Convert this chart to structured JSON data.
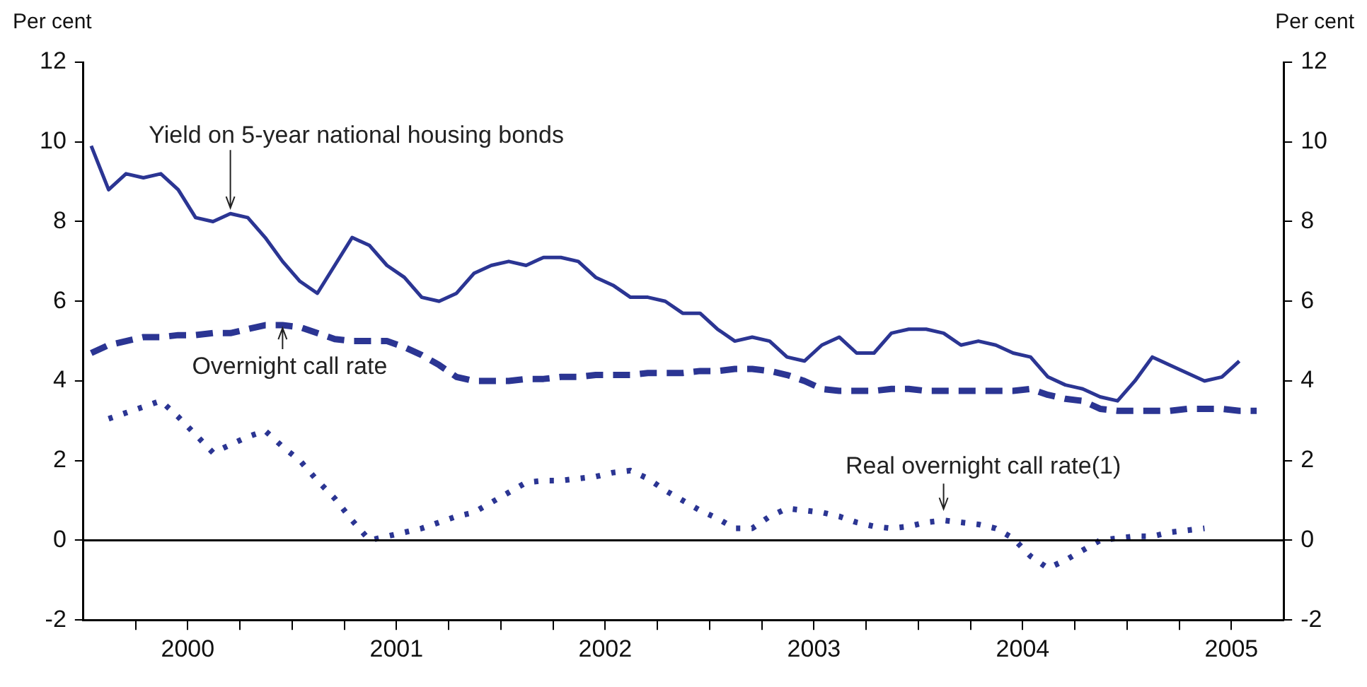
{
  "chart_data": {
    "type": "line",
    "ylabel": "Per cent",
    "y2label": "Per cent",
    "x": [
      "1999-07-15",
      "1999-08-15",
      "1999-09-15",
      "1999-10-15",
      "1999-11-15",
      "1999-12-15",
      "2000-01-15",
      "2000-02-15",
      "2000-03-15",
      "2000-04-15",
      "2000-05-15",
      "2000-06-15",
      "2000-07-15",
      "2000-08-15",
      "2000-09-15",
      "2000-10-15",
      "2000-11-15",
      "2000-12-15",
      "2001-01-15",
      "2001-02-15",
      "2001-03-15",
      "2001-04-15",
      "2001-05-15",
      "2001-06-15",
      "2001-07-15",
      "2001-08-15",
      "2001-09-15",
      "2001-10-15",
      "2001-11-15",
      "2001-12-15",
      "2002-01-15",
      "2002-02-15",
      "2002-03-15",
      "2002-04-15",
      "2002-05-15",
      "2002-06-15",
      "2002-07-15",
      "2002-08-15",
      "2002-09-15",
      "2002-10-15",
      "2002-11-15",
      "2002-12-15",
      "2003-01-15",
      "2003-02-15",
      "2003-03-15",
      "2003-04-15",
      "2003-05-15",
      "2003-06-15",
      "2003-07-15",
      "2003-08-15",
      "2003-09-15",
      "2003-10-15",
      "2003-11-15",
      "2003-12-15",
      "2004-01-15",
      "2004-02-15",
      "2004-03-15",
      "2004-04-15",
      "2004-05-15",
      "2004-06-15",
      "2004-07-15",
      "2004-08-15",
      "2004-09-15",
      "2004-10-15",
      "2004-11-15",
      "2004-12-15",
      "2005-01-15",
      "2005-02-15"
    ],
    "series": [
      {
        "color": "#2b3593",
        "line_style": "solid",
        "values": [
          9.9,
          8.8,
          9.2,
          9.1,
          9.2,
          8.8,
          8.1,
          8.0,
          8.2,
          8.1,
          7.6,
          7.0,
          6.5,
          6.2,
          6.9,
          7.6,
          7.4,
          6.9,
          6.6,
          6.1,
          6.0,
          6.2,
          6.7,
          6.9,
          7.0,
          6.9,
          7.1,
          7.1,
          7.0,
          6.6,
          6.4,
          6.1,
          6.1,
          6.0,
          5.7,
          5.7,
          5.3,
          5.0,
          5.1,
          5.0,
          4.6,
          4.5,
          4.9,
          5.1,
          4.7,
          4.7,
          5.2,
          5.3,
          5.3,
          5.2,
          4.9,
          5.0,
          4.9,
          4.7,
          4.6,
          4.1,
          3.9,
          3.8,
          3.6,
          3.5,
          4.0,
          4.6,
          4.4,
          4.2,
          4.0,
          4.1,
          4.5,
          null
        ]
      },
      {
        "color": "#2b3593",
        "line_style": "dashed",
        "values": [
          4.7,
          4.9,
          5.0,
          5.1,
          5.1,
          5.15,
          5.15,
          5.2,
          5.2,
          5.3,
          5.4,
          5.4,
          5.35,
          5.2,
          5.05,
          5.0,
          5.0,
          5.0,
          4.85,
          4.65,
          4.4,
          4.1,
          4.0,
          4.0,
          4.0,
          4.05,
          4.05,
          4.1,
          4.1,
          4.15,
          4.15,
          4.15,
          4.2,
          4.2,
          4.2,
          4.25,
          4.25,
          4.3,
          4.3,
          4.25,
          4.15,
          4.0,
          3.8,
          3.75,
          3.75,
          3.75,
          3.8,
          3.8,
          3.75,
          3.75,
          3.75,
          3.75,
          3.75,
          3.75,
          3.8,
          3.65,
          3.55,
          3.5,
          3.3,
          3.25,
          3.25,
          3.25,
          3.25,
          3.3,
          3.3,
          3.3,
          3.25,
          3.25
        ]
      },
      {
        "color": "#2b3593",
        "line_style": "dotted",
        "values": [
          null,
          3.05,
          3.2,
          3.35,
          3.5,
          3.1,
          2.65,
          2.2,
          2.4,
          2.6,
          2.75,
          2.35,
          2.0,
          1.5,
          1.05,
          0.5,
          0.0,
          0.1,
          0.2,
          0.3,
          0.45,
          0.6,
          0.7,
          0.95,
          1.2,
          1.45,
          1.5,
          1.5,
          1.55,
          1.6,
          1.7,
          1.75,
          1.55,
          1.25,
          1.0,
          0.75,
          0.55,
          0.3,
          0.3,
          0.6,
          0.8,
          0.75,
          0.7,
          0.6,
          0.45,
          0.35,
          0.3,
          0.35,
          0.45,
          0.5,
          0.45,
          0.4,
          0.3,
          0.05,
          -0.4,
          -0.7,
          -0.5,
          -0.25,
          0.0,
          0.05,
          0.1,
          0.1,
          0.2,
          0.25,
          0.3,
          null,
          null,
          null
        ]
      }
    ],
    "xlim": [
      "1999-07-01",
      "2005-04-01"
    ],
    "xticks": [
      {
        "value": "1999-10-01",
        "label": null
      },
      {
        "value": "2000-01-01",
        "label": "2000"
      },
      {
        "value": "2000-04-01",
        "label": null
      },
      {
        "value": "2000-07-01",
        "label": null
      },
      {
        "value": "2000-10-01",
        "label": null
      },
      {
        "value": "2001-01-01",
        "label": "2001"
      },
      {
        "value": "2001-04-01",
        "label": null
      },
      {
        "value": "2001-07-01",
        "label": null
      },
      {
        "value": "2001-10-01",
        "label": null
      },
      {
        "value": "2002-01-01",
        "label": "2002"
      },
      {
        "value": "2002-04-01",
        "label": null
      },
      {
        "value": "2002-07-01",
        "label": null
      },
      {
        "value": "2002-10-01",
        "label": null
      },
      {
        "value": "2003-01-01",
        "label": "2003"
      },
      {
        "value": "2003-04-01",
        "label": null
      },
      {
        "value": "2003-07-01",
        "label": null
      },
      {
        "value": "2003-10-01",
        "label": null
      },
      {
        "value": "2004-01-01",
        "label": "2004"
      },
      {
        "value": "2004-04-01",
        "label": null
      },
      {
        "value": "2004-07-01",
        "label": null
      },
      {
        "value": "2004-10-01",
        "label": null
      },
      {
        "value": "2005-01-01",
        "label": "2005"
      }
    ],
    "ylim": [
      -2,
      12
    ],
    "yticks": [
      -2,
      0,
      2,
      4,
      6,
      8,
      10,
      12
    ],
    "y2lim": [
      -2,
      12
    ],
    "y2ticks": [
      -2,
      0,
      2,
      4,
      6,
      8,
      10,
      12
    ],
    "ref_lines": [
      {
        "axis": "y",
        "value": 0,
        "color": "#000000"
      }
    ],
    "annotations": [
      {
        "text": "Yield on 5-year national housing bonds",
        "x": "2000-03-15",
        "y": 8.2
      },
      {
        "text": "Overnight call rate",
        "x": "2000-06-15",
        "y": 5.4
      },
      {
        "text": "Real overnight call rate(1)",
        "x": "2003-08-15",
        "y": 0.5
      }
    ],
    "grid": false,
    "legend": false,
    "marker": "none"
  }
}
